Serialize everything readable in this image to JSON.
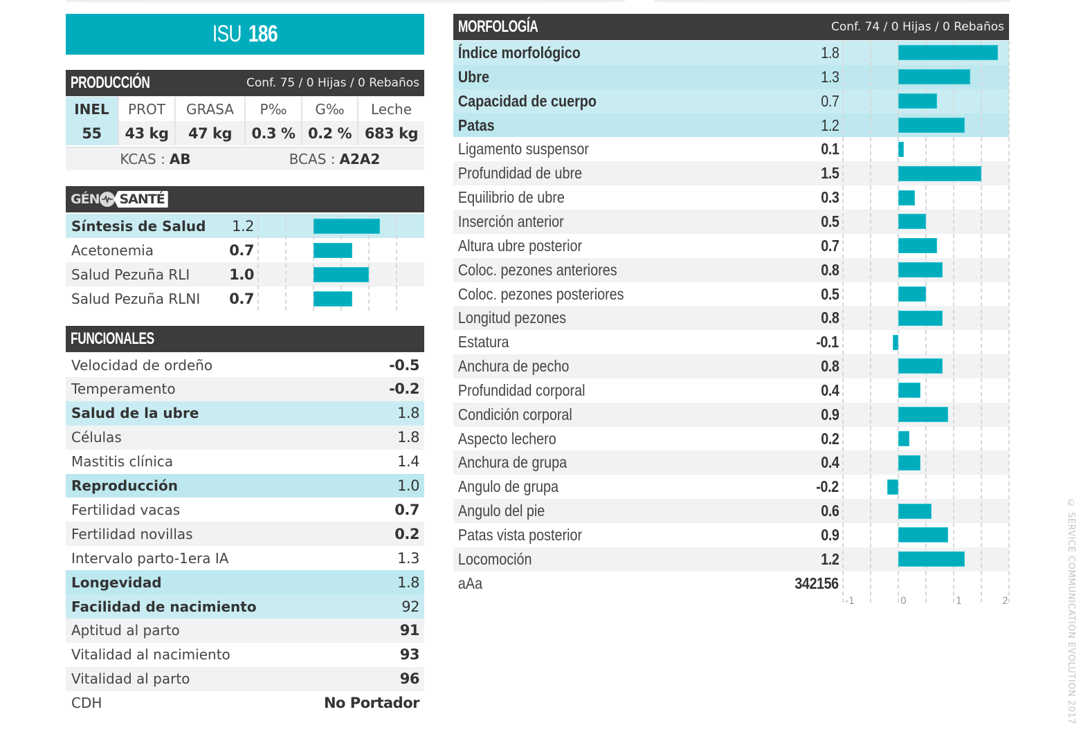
{
  "title": {
    "prefix": "ISU",
    "number": "186"
  },
  "produccion": {
    "title": "PRODUCCIÓN",
    "conf": "Conf. 75 / 0 Hijas / 0 Rebaños",
    "headers": [
      "INEL",
      "PROT",
      "GRASA",
      "P‰",
      "G‰",
      "Leche"
    ],
    "values": [
      "55",
      "43 kg",
      "47 kg",
      "0.3 %",
      "0.2 %",
      "683 kg"
    ],
    "kcas_label": "KCAS :",
    "kcas_value": "AB",
    "bcas_label": "BCAS :",
    "bcas_value": "A2A2"
  },
  "geno_sante": {
    "logo_part1": "GÉN",
    "logo_part2": "SANTÉ",
    "rows": [
      {
        "label": "Síntesis de Salud",
        "value": "1.2",
        "num": 1.2,
        "highlight": true
      },
      {
        "label": "Acetonemia",
        "value": "0.7",
        "num": 0.7,
        "highlight": false
      },
      {
        "label": "Salud Pezuña RLI",
        "value": "1.0",
        "num": 1.0,
        "highlight": false
      },
      {
        "label": "Salud Pezuña RLNI",
        "value": "0.7",
        "num": 0.7,
        "highlight": false
      }
    ]
  },
  "funcionales": {
    "title": "FUNCIONALES",
    "rows": [
      {
        "label": "Velocidad de ordeño",
        "value": "-0.5",
        "highlight": false
      },
      {
        "label": "Temperamento",
        "value": "-0.2",
        "highlight": false
      },
      {
        "label": "Salud de la ubre",
        "value": "1.8",
        "highlight": true
      },
      {
        "label": "Células",
        "value": "1.8",
        "highlight": false
      },
      {
        "label": "Mastitis clínica",
        "value": "1.4",
        "highlight": false
      },
      {
        "label": "Reproducción",
        "value": "1.0",
        "highlight": true
      },
      {
        "label": "Fertilidad vacas",
        "value": "0.7",
        "highlight": false
      },
      {
        "label": "Fertilidad novillas",
        "value": "0.2",
        "highlight": false
      },
      {
        "label": "Intervalo parto-1era IA",
        "value": "1.3",
        "highlight": false
      },
      {
        "label": "Longevidad",
        "value": "1.8",
        "highlight": true
      },
      {
        "label": "Facilidad de nacimiento",
        "value": "92",
        "highlight": true
      },
      {
        "label": "Aptitud al parto",
        "value": "91",
        "highlight": false
      },
      {
        "label": "Vitalidad al nacimiento",
        "value": "93",
        "highlight": false
      },
      {
        "label": "Vitalidad al parto",
        "value": "96",
        "highlight": false
      },
      {
        "label": "CDH",
        "value": "No Portador",
        "highlight": false
      }
    ]
  },
  "morfologia": {
    "title": "MORFOLOGÍA",
    "conf": "Conf. 74 / 0 Hijas / 0 Rebaños",
    "rows": [
      {
        "label": "Índice morfológico",
        "value": "1.8",
        "num": 1.8,
        "highlight": true
      },
      {
        "label": "Ubre",
        "value": "1.3",
        "num": 1.3,
        "highlight": true
      },
      {
        "label": "Capacidad de cuerpo",
        "value": "0.7",
        "num": 0.7,
        "highlight": true
      },
      {
        "label": "Patas",
        "value": "1.2",
        "num": 1.2,
        "highlight": true
      },
      {
        "label": "Ligamento suspensor",
        "value": "0.1",
        "num": 0.1,
        "highlight": false
      },
      {
        "label": "Profundidad de ubre",
        "value": "1.5",
        "num": 1.5,
        "highlight": false
      },
      {
        "label": "Equilibrio de ubre",
        "value": "0.3",
        "num": 0.3,
        "highlight": false
      },
      {
        "label": "Inserción anterior",
        "value": "0.5",
        "num": 0.5,
        "highlight": false
      },
      {
        "label": "Altura ubre posterior",
        "value": "0.7",
        "num": 0.7,
        "highlight": false
      },
      {
        "label": "Coloc. pezones anteriores",
        "value": "0.8",
        "num": 0.8,
        "highlight": false
      },
      {
        "label": "Coloc. pezones posteriores",
        "value": "0.5",
        "num": 0.5,
        "highlight": false
      },
      {
        "label": "Longitud pezones",
        "value": "0.8",
        "num": 0.8,
        "highlight": false
      },
      {
        "label": "Estatura",
        "value": "-0.1",
        "num": -0.1,
        "highlight": false
      },
      {
        "label": "Anchura de pecho",
        "value": "0.8",
        "num": 0.8,
        "highlight": false
      },
      {
        "label": "Profundidad corporal",
        "value": "0.4",
        "num": 0.4,
        "highlight": false
      },
      {
        "label": "Condición corporal",
        "value": "0.9",
        "num": 0.9,
        "highlight": false
      },
      {
        "label": "Aspecto lechero",
        "value": "0.2",
        "num": 0.2,
        "highlight": false
      },
      {
        "label": "Anchura de grupa",
        "value": "0.4",
        "num": 0.4,
        "highlight": false
      },
      {
        "label": "Angulo de grupa",
        "value": "-0.2",
        "num": -0.2,
        "highlight": false
      },
      {
        "label": "Angulo del pie",
        "value": "0.6",
        "num": 0.6,
        "highlight": false
      },
      {
        "label": "Patas vista posterior",
        "value": "0.9",
        "num": 0.9,
        "highlight": false
      },
      {
        "label": "Locomoción",
        "value": "1.2",
        "num": 1.2,
        "highlight": false
      },
      {
        "label": "aAa",
        "value": "342156",
        "num": null,
        "highlight": false
      }
    ],
    "axis_ticks": [
      "-1",
      "0",
      "1",
      "2"
    ]
  },
  "copyright": "© SERVICE COMMUNICATION EVOLUTION 2017",
  "colors": {
    "accent": "#00adbd",
    "header_bg": "#3c3c3c",
    "highlight_row": "#c9ecf2",
    "alt_row": "#f1f2f4"
  },
  "chart_data": [
    {
      "type": "bar",
      "orientation": "horizontal",
      "title": "GÉNO SANTÉ",
      "categories": [
        "Síntesis de Salud",
        "Acetonemia",
        "Salud Pezuña RLI",
        "Salud Pezuña RLNI"
      ],
      "values": [
        1.2,
        0.7,
        1.0,
        0.7
      ],
      "xlim": [
        -1,
        1.5
      ],
      "grid": true
    },
    {
      "type": "bar",
      "orientation": "horizontal",
      "title": "MORFOLOGÍA",
      "categories": [
        "Índice morfológico",
        "Ubre",
        "Capacidad de cuerpo",
        "Patas",
        "Ligamento suspensor",
        "Profundidad de ubre",
        "Equilibrio de ubre",
        "Inserción anterior",
        "Altura ubre posterior",
        "Coloc. pezones anteriores",
        "Coloc. pezones posteriores",
        "Longitud pezones",
        "Estatura",
        "Anchura de pecho",
        "Profundidad corporal",
        "Condición corporal",
        "Aspecto lechero",
        "Anchura de grupa",
        "Angulo de grupa",
        "Angulo del pie",
        "Patas vista posterior",
        "Locomoción"
      ],
      "values": [
        1.8,
        1.3,
        0.7,
        1.2,
        0.1,
        1.5,
        0.3,
        0.5,
        0.7,
        0.8,
        0.5,
        0.8,
        -0.1,
        0.8,
        0.4,
        0.9,
        0.2,
        0.4,
        -0.2,
        0.6,
        0.9,
        1.2
      ],
      "xlim": [
        -1,
        2
      ],
      "xticks": [
        "-1",
        "0",
        "1",
        "2"
      ],
      "grid": true
    }
  ]
}
